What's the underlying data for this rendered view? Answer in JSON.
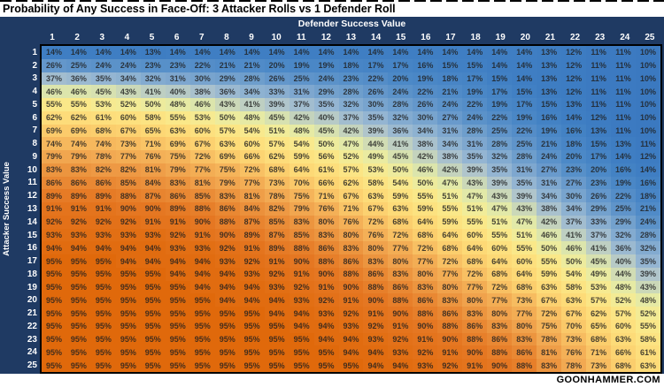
{
  "title": "Probability of Any Success in Face-Off: 3 Attacker Rolls vs 1 Defender Roll",
  "footer": "GOONHAMMER.COM",
  "colors": {
    "panel_bg": "#1F3A63",
    "grid_border": "#000000",
    "header_text": "#FFFFFF",
    "title_text": "#000000",
    "cell_text": "#202020"
  },
  "chart_data": {
    "type": "heatmap",
    "title": "Probability of Any Success in Face-Off: 3 Attacker Rolls vs 1 Defender Roll",
    "xlabel": "Defender Success Value",
    "ylabel": "Attacker Success Value",
    "x": [
      1,
      2,
      3,
      4,
      5,
      6,
      7,
      8,
      9,
      10,
      11,
      12,
      13,
      14,
      15,
      16,
      17,
      18,
      19,
      20,
      21,
      22,
      23,
      24,
      25
    ],
    "y": [
      1,
      2,
      3,
      4,
      5,
      6,
      7,
      8,
      9,
      10,
      11,
      12,
      13,
      14,
      15,
      16,
      17,
      18,
      19,
      20,
      21,
      22,
      23,
      24,
      25
    ],
    "values_unit": "%",
    "legend_position": "none",
    "grid": false,
    "matrix": [
      [
        14,
        14,
        14,
        14,
        13,
        14,
        14,
        14,
        14,
        14,
        14,
        14,
        14,
        14,
        14,
        14,
        14,
        14,
        14,
        14,
        13,
        12,
        11,
        11,
        10
      ],
      [
        26,
        25,
        24,
        24,
        23,
        23,
        22,
        21,
        21,
        20,
        19,
        19,
        18,
        17,
        17,
        16,
        15,
        15,
        14,
        14,
        13,
        12,
        11,
        11,
        10
      ],
      [
        37,
        36,
        35,
        34,
        32,
        31,
        30,
        29,
        28,
        26,
        25,
        24,
        23,
        22,
        20,
        19,
        18,
        17,
        15,
        14,
        13,
        12,
        11,
        11,
        10
      ],
      [
        46,
        46,
        45,
        43,
        41,
        40,
        38,
        36,
        34,
        33,
        31,
        29,
        28,
        26,
        24,
        22,
        21,
        19,
        17,
        15,
        13,
        12,
        11,
        11,
        10
      ],
      [
        55,
        55,
        53,
        52,
        50,
        48,
        46,
        43,
        41,
        39,
        37,
        35,
        32,
        30,
        28,
        26,
        24,
        22,
        19,
        17,
        15,
        13,
        11,
        11,
        10
      ],
      [
        62,
        62,
        61,
        60,
        58,
        55,
        53,
        50,
        48,
        45,
        42,
        40,
        37,
        35,
        32,
        30,
        27,
        24,
        22,
        19,
        16,
        14,
        12,
        11,
        10
      ],
      [
        69,
        69,
        68,
        67,
        65,
        63,
        60,
        57,
        54,
        51,
        48,
        45,
        42,
        39,
        36,
        34,
        31,
        28,
        25,
        22,
        19,
        16,
        13,
        11,
        10
      ],
      [
        74,
        74,
        74,
        73,
        71,
        69,
        67,
        63,
        60,
        57,
        54,
        50,
        47,
        44,
        41,
        38,
        34,
        31,
        28,
        25,
        21,
        18,
        15,
        13,
        11
      ],
      [
        79,
        79,
        78,
        77,
        76,
        75,
        72,
        69,
        66,
        62,
        59,
        56,
        52,
        49,
        45,
        42,
        38,
        35,
        32,
        28,
        24,
        20,
        17,
        14,
        12
      ],
      [
        83,
        83,
        82,
        82,
        81,
        79,
        77,
        75,
        72,
        68,
        64,
        61,
        57,
        53,
        50,
        46,
        42,
        39,
        35,
        31,
        27,
        23,
        20,
        16,
        14
      ],
      [
        86,
        86,
        86,
        85,
        84,
        83,
        81,
        79,
        77,
        73,
        70,
        66,
        62,
        58,
        54,
        50,
        47,
        43,
        39,
        35,
        31,
        27,
        23,
        19,
        16
      ],
      [
        89,
        89,
        89,
        88,
        87,
        86,
        85,
        83,
        81,
        78,
        75,
        71,
        67,
        63,
        59,
        55,
        51,
        47,
        43,
        39,
        34,
        30,
        26,
        22,
        18
      ],
      [
        91,
        91,
        91,
        90,
        90,
        89,
        88,
        86,
        84,
        82,
        79,
        76,
        71,
        67,
        63,
        59,
        55,
        51,
        47,
        43,
        38,
        34,
        29,
        25,
        21
      ],
      [
        92,
        92,
        92,
        92,
        91,
        91,
        90,
        88,
        87,
        85,
        83,
        80,
        76,
        72,
        68,
        64,
        59,
        55,
        51,
        47,
        42,
        37,
        33,
        29,
        24
      ],
      [
        93,
        93,
        93,
        93,
        93,
        92,
        91,
        90,
        89,
        87,
        85,
        83,
        80,
        76,
        72,
        68,
        64,
        60,
        55,
        51,
        46,
        41,
        37,
        32,
        28
      ],
      [
        94,
        94,
        94,
        94,
        94,
        93,
        93,
        92,
        91,
        89,
        88,
        86,
        83,
        80,
        77,
        72,
        68,
        64,
        60,
        55,
        50,
        46,
        41,
        36,
        32
      ],
      [
        95,
        95,
        95,
        94,
        94,
        94,
        94,
        93,
        92,
        91,
        90,
        88,
        86,
        83,
        80,
        77,
        72,
        68,
        64,
        60,
        55,
        50,
        45,
        40,
        35
      ],
      [
        95,
        95,
        95,
        95,
        95,
        94,
        94,
        94,
        93,
        92,
        91,
        90,
        88,
        86,
        83,
        80,
        77,
        72,
        68,
        64,
        59,
        54,
        49,
        44,
        39
      ],
      [
        95,
        95,
        95,
        95,
        95,
        95,
        94,
        94,
        94,
        93,
        92,
        91,
        90,
        88,
        86,
        83,
        80,
        77,
        72,
        68,
        63,
        58,
        53,
        48,
        43
      ],
      [
        95,
        95,
        95,
        95,
        95,
        95,
        95,
        94,
        94,
        94,
        93,
        92,
        91,
        90,
        88,
        86,
        83,
        80,
        77,
        73,
        67,
        63,
        57,
        52,
        48
      ],
      [
        95,
        95,
        95,
        95,
        95,
        95,
        95,
        95,
        95,
        94,
        94,
        93,
        92,
        91,
        90,
        88,
        86,
        83,
        80,
        77,
        72,
        67,
        62,
        57,
        52
      ],
      [
        95,
        95,
        95,
        95,
        95,
        95,
        95,
        95,
        95,
        95,
        94,
        94,
        93,
        92,
        91,
        90,
        88,
        86,
        83,
        80,
        75,
        70,
        65,
        60,
        55
      ],
      [
        95,
        95,
        95,
        95,
        95,
        95,
        95,
        95,
        95,
        95,
        95,
        94,
        94,
        93,
        92,
        91,
        90,
        88,
        86,
        83,
        78,
        73,
        68,
        63,
        58
      ],
      [
        95,
        95,
        95,
        95,
        95,
        95,
        95,
        95,
        95,
        95,
        95,
        95,
        94,
        94,
        93,
        92,
        91,
        90,
        88,
        86,
        81,
        76,
        71,
        66,
        61
      ],
      [
        95,
        95,
        95,
        95,
        95,
        95,
        95,
        95,
        95,
        95,
        95,
        95,
        95,
        94,
        94,
        93,
        92,
        91,
        90,
        88,
        83,
        78,
        73,
        68,
        63
      ]
    ],
    "color_scale": {
      "low_value": 10,
      "mid_value": 50,
      "high_value": 95,
      "low_color": "#3B79C0",
      "mid_color": "#F1EC99",
      "high_color": "#E0690B"
    },
    "color_stops": [
      [
        10,
        "#3B79C0"
      ],
      [
        14,
        "#3F7EC3"
      ],
      [
        20,
        "#4C89C7"
      ],
      [
        25,
        "#5F94CA"
      ],
      [
        30,
        "#78A4CE"
      ],
      [
        35,
        "#94B5D2"
      ],
      [
        39,
        "#B0C5CB"
      ],
      [
        43,
        "#CBD8B8"
      ],
      [
        47,
        "#E2E9A8"
      ],
      [
        51,
        "#F1EC99"
      ],
      [
        55,
        "#FAE889"
      ],
      [
        60,
        "#FDE07E"
      ],
      [
        65,
        "#FDD774"
      ],
      [
        70,
        "#FAC869"
      ],
      [
        75,
        "#F5B45A"
      ],
      [
        80,
        "#F0A24C"
      ],
      [
        85,
        "#EA8C37"
      ],
      [
        90,
        "#E57722"
      ],
      [
        95,
        "#E0690B"
      ]
    ]
  }
}
